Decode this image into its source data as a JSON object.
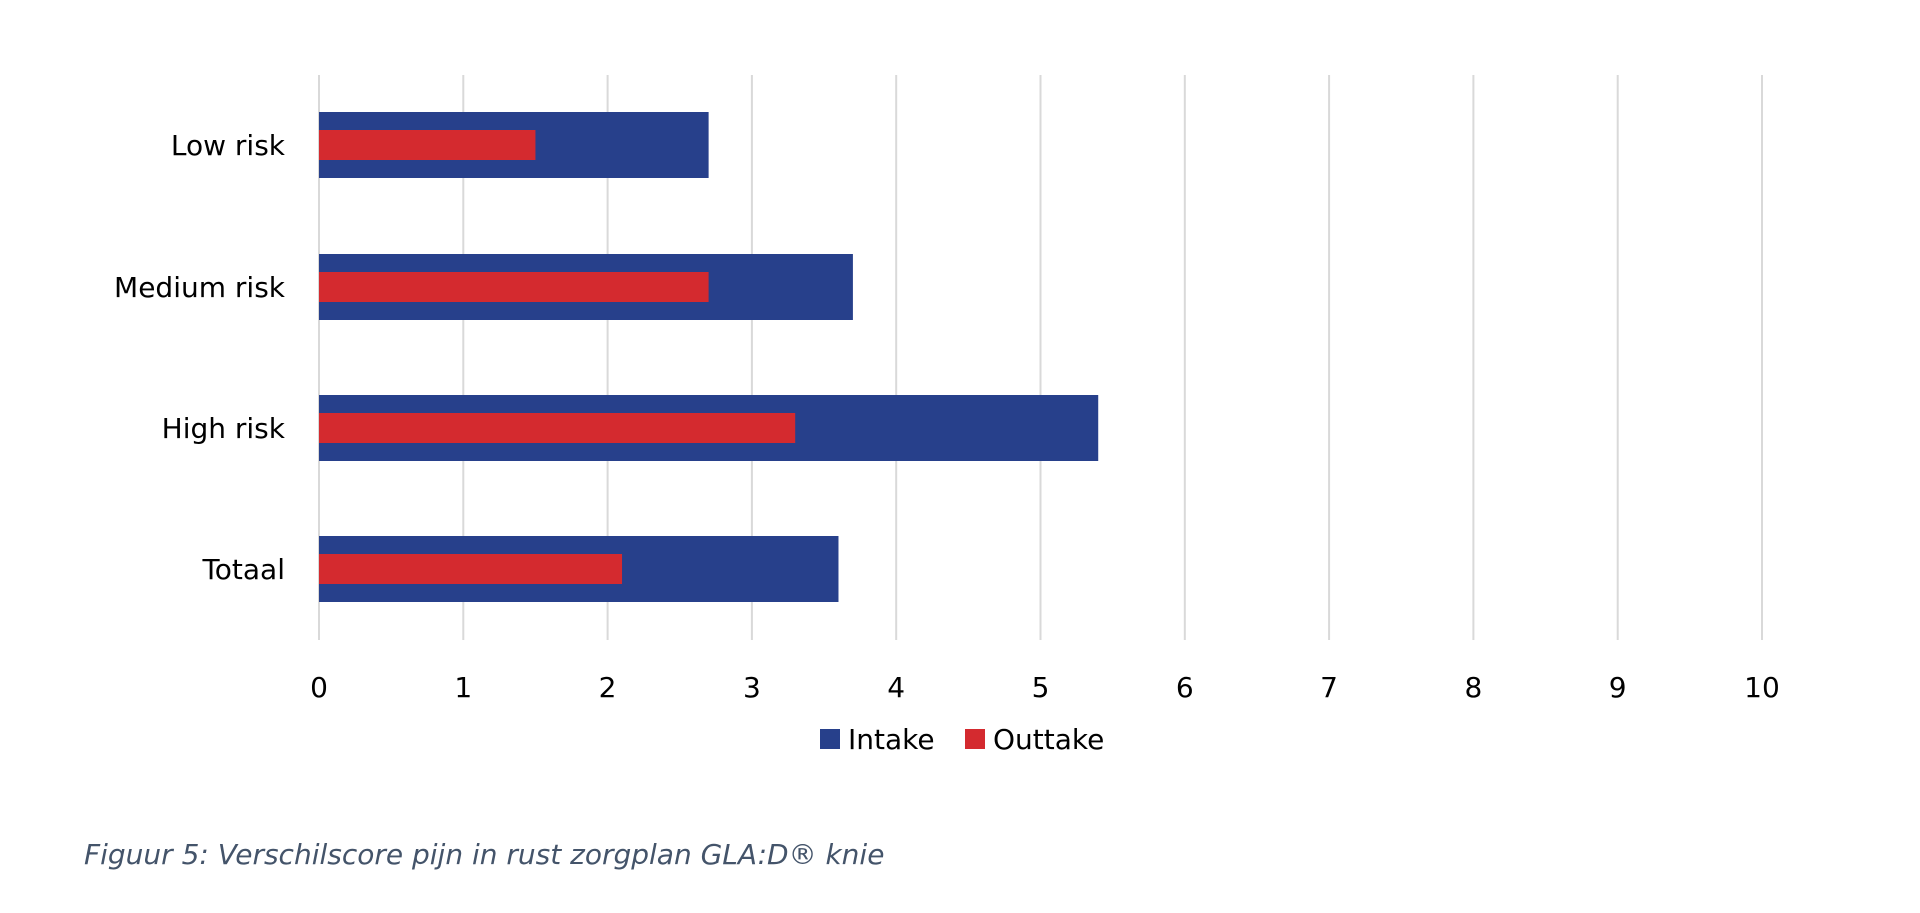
{
  "caption": "Figuur 5: Verschilscore pijn in rust zorgplan GLA:D® knie",
  "chart_data": {
    "type": "bar",
    "orientation": "horizontal",
    "bar_layout": "overlapped",
    "categories": [
      "Low risk",
      "Medium risk",
      "High risk",
      "Totaal"
    ],
    "series": [
      {
        "name": "Intake",
        "color": "#27408b",
        "values": [
          2.7,
          3.7,
          5.4,
          3.6
        ]
      },
      {
        "name": "Outtake",
        "color": "#d42a2f",
        "values": [
          1.5,
          2.7,
          3.3,
          2.1
        ]
      }
    ],
    "xlim": [
      0,
      10
    ],
    "xticks": [
      "0",
      "1",
      "2",
      "3",
      "4",
      "5",
      "6",
      "7",
      "8",
      "9",
      "10"
    ],
    "grid": true,
    "grid_color": "#d9d9d9",
    "legend_position": "bottom"
  }
}
